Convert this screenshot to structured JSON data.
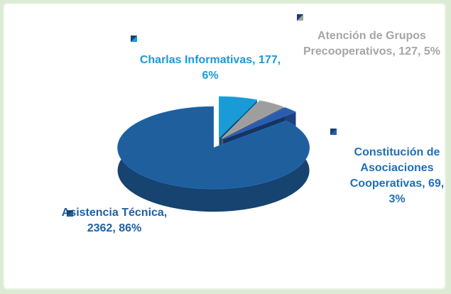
{
  "chart_data": {
    "type": "pie3d",
    "categories": [
      "Charlas Informativas, 177, 6%",
      "Atención de Grupos Precooperativos, 127, 5%",
      "Constitución de Asociaciones Cooperativas, 69, 3%",
      "Asistencia Técnica, 2362, 86%"
    ],
    "values": [
      177,
      127,
      69,
      2362
    ],
    "colors": [
      "#1a9ad6",
      "#9e9e9e",
      "#2a5db0",
      "#1f5f9e"
    ],
    "label_colors": [
      "#1a9ad6",
      "#a6a6a6",
      "#1f6fb8",
      "#1f5f9e"
    ]
  }
}
